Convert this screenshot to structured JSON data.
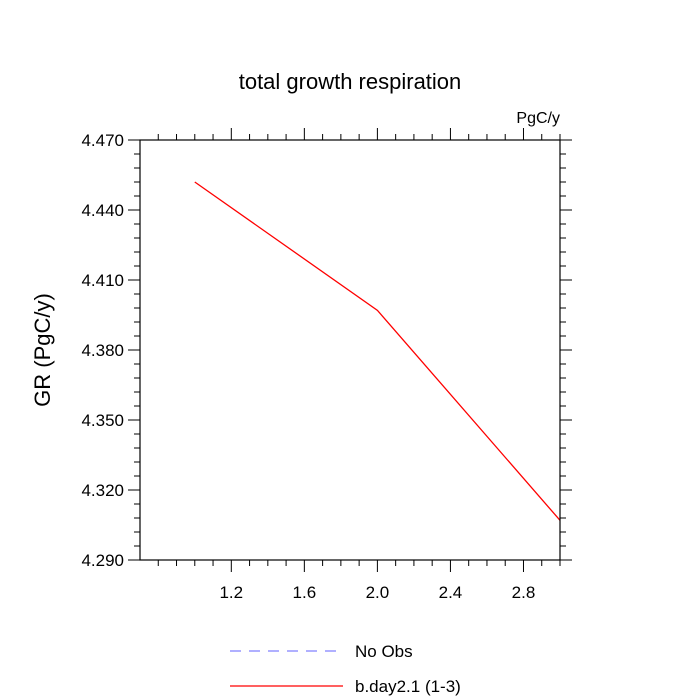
{
  "chart_data": {
    "type": "line",
    "title": "total growth respiration",
    "units_label": "PgC/y",
    "ylabel": "GR  (PgC/y)",
    "xlabel": "",
    "xlim": [
      0.7,
      3.0
    ],
    "ylim": [
      4.29,
      4.47
    ],
    "xticks": [
      {
        "value": 1.2,
        "label": "1.2"
      },
      {
        "value": 1.6,
        "label": "1.6"
      },
      {
        "value": 2.0,
        "label": "2.0"
      },
      {
        "value": 2.4,
        "label": "2.4"
      },
      {
        "value": 2.8,
        "label": "2.8"
      }
    ],
    "yticks": [
      {
        "value": 4.29,
        "label": "4.290"
      },
      {
        "value": 4.32,
        "label": "4.320"
      },
      {
        "value": 4.35,
        "label": "4.350"
      },
      {
        "value": 4.38,
        "label": "4.380"
      },
      {
        "value": 4.41,
        "label": "4.410"
      },
      {
        "value": 4.44,
        "label": "4.440"
      },
      {
        "value": 4.47,
        "label": "4.470"
      }
    ],
    "series": [
      {
        "name": "b.day2.1 (1-3)",
        "color": "#ff0000",
        "dash": "solid",
        "x": [
          1.0,
          2.0,
          3.0
        ],
        "y": [
          4.452,
          4.397,
          4.307
        ]
      }
    ],
    "legend": {
      "position": "bottom",
      "entries": [
        {
          "label": "No Obs",
          "color": "#8080ff",
          "dash": "dashed"
        },
        {
          "label": "b.day2.1 (1-3)",
          "color": "#ff0000",
          "dash": "solid"
        }
      ]
    },
    "grid": false
  }
}
